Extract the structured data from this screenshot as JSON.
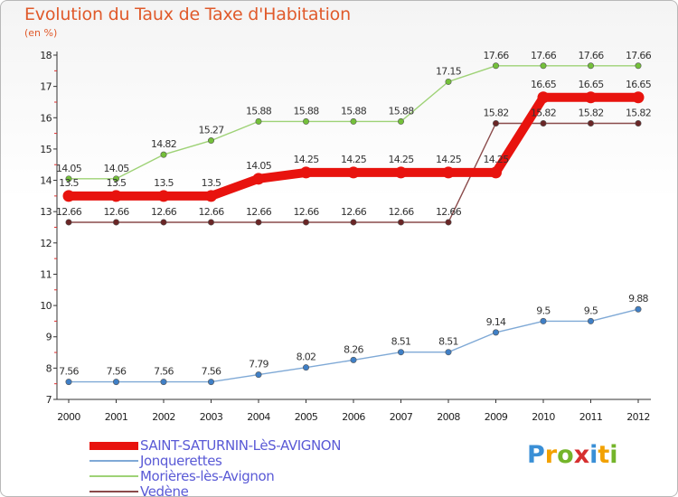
{
  "title": "Evolution du Taux de Taxe d'Habitation",
  "unit_label": "(en %)",
  "logo": {
    "letters": [
      {
        "ch": "P",
        "color": "#3a8fd6"
      },
      {
        "ch": "r",
        "color": "#f2a100"
      },
      {
        "ch": "o",
        "color": "#74b52a"
      },
      {
        "ch": "x",
        "color": "#d62f2f"
      },
      {
        "ch": "i",
        "color": "#3a8fd6"
      },
      {
        "ch": "t",
        "color": "#f2a100"
      },
      {
        "ch": "i",
        "color": "#74b52a"
      }
    ]
  },
  "chart_data": {
    "type": "line",
    "x": [
      "2000",
      "2001",
      "2002",
      "2003",
      "2004",
      "2005",
      "2006",
      "2007",
      "2008",
      "2009",
      "2010",
      "2011",
      "2012"
    ],
    "ylim": [
      7,
      18
    ],
    "yticks": [
      "7",
      "8",
      "9",
      "10",
      "11",
      "12",
      "13",
      "14",
      "15",
      "16",
      "17",
      "18"
    ],
    "grid": false,
    "legend_position": "bottom-left",
    "series": [
      {
        "name": "SAINT-SATURNIN-LèS-AVIGNON",
        "color": "#e8130e",
        "marker_color": "#e8130e",
        "emphasis": true,
        "values": [
          13.5,
          13.5,
          13.5,
          13.5,
          14.05,
          14.25,
          14.25,
          14.25,
          14.25,
          14.25,
          16.65,
          16.65,
          16.65
        ],
        "labels": [
          "13.5",
          "13.5",
          "13.5",
          "13.5",
          "14.05",
          "14.25",
          "14.25",
          "14.25",
          "14.25",
          "14.25",
          "16.65",
          "16.65",
          "16.65"
        ]
      },
      {
        "name": "Jonquerettes",
        "color": "#7fa9d6",
        "marker_color": "#3f7fc6",
        "values": [
          7.56,
          7.56,
          7.56,
          7.56,
          7.79,
          8.02,
          8.26,
          8.51,
          8.51,
          9.14,
          9.5,
          9.5,
          9.88
        ],
        "labels": [
          "7.56",
          "7.56",
          "7.56",
          "7.56",
          "7.79",
          "8.02",
          "8.26",
          "8.51",
          "8.51",
          "9.14",
          "9.5",
          "9.5",
          "9.88"
        ]
      },
      {
        "name": "Morières-lès-Avignon",
        "color": "#9ed276",
        "marker_color": "#74c03a",
        "values": [
          14.05,
          14.05,
          14.82,
          15.27,
          15.88,
          15.88,
          15.88,
          15.88,
          17.15,
          17.66,
          17.66,
          17.66,
          17.66
        ],
        "labels": [
          "14.05",
          "14.05",
          "14.82",
          "15.27",
          "15.88",
          "15.88",
          "15.88",
          "15.88",
          "17.15",
          "17.66",
          "17.66",
          "17.66",
          "17.66"
        ]
      },
      {
        "name": "Vedène",
        "color": "#8a4a4a",
        "marker_color": "#6a2626",
        "values": [
          12.66,
          12.66,
          12.66,
          12.66,
          12.66,
          12.66,
          12.66,
          12.66,
          12.66,
          15.82,
          15.82,
          15.82,
          15.82
        ],
        "labels": [
          "12.66",
          "12.66",
          "12.66",
          "12.66",
          "12.66",
          "12.66",
          "12.66",
          "12.66",
          "12.66",
          "15.82",
          "15.82",
          "15.82",
          "15.82"
        ]
      }
    ]
  }
}
